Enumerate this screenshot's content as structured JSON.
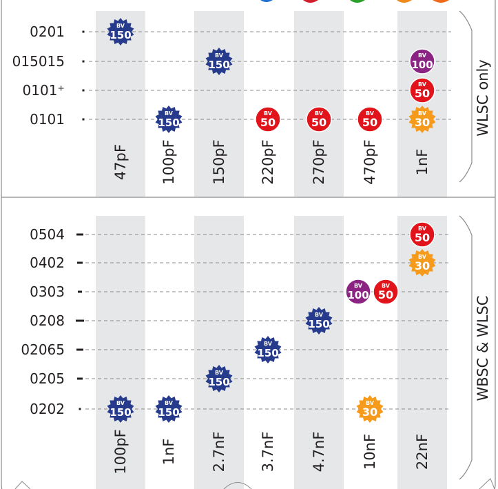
{
  "chart_data": [
    {
      "type": "scatter",
      "panel_label": "WLSC only",
      "columns": [
        "47pF",
        "100pF",
        "150pF",
        "220pF",
        "270pF",
        "470pF",
        "1nF"
      ],
      "rows": [
        "0201",
        "015015",
        "0101⁺",
        "0101"
      ],
      "points": [
        {
          "column": "47pF",
          "row": "0201",
          "bv": "150"
        },
        {
          "column": "150pF",
          "row": "015015",
          "bv": "150"
        },
        {
          "column": "1nF",
          "row": "015015",
          "bv": "100"
        },
        {
          "column": "1nF",
          "row": "0101⁺",
          "bv": "50"
        },
        {
          "column": "100pF",
          "row": "0101",
          "bv": "150"
        },
        {
          "column": "220pF",
          "row": "0101",
          "bv": "50"
        },
        {
          "column": "270pF",
          "row": "0101",
          "bv": "50"
        },
        {
          "column": "470pF",
          "row": "0101",
          "bv": "50"
        },
        {
          "column": "1nF",
          "row": "0101",
          "bv": "30"
        }
      ]
    },
    {
      "type": "scatter",
      "panel_label": "WBSC & WLSC",
      "columns": [
        "100pF",
        "1nF",
        "2.7nF",
        "3.7nF",
        "4.7nF",
        "10nF",
        "22nF"
      ],
      "rows": [
        "0504",
        "0402",
        "0303",
        "0208",
        "02065",
        "0205",
        "0202"
      ],
      "points": [
        {
          "column": "22nF",
          "row": "0504",
          "bv": "50"
        },
        {
          "column": "22nF",
          "row": "0402",
          "bv": "30"
        },
        {
          "column": "10nF",
          "row": "0303",
          "bv": "100"
        },
        {
          "column": "10nF",
          "row": "0303",
          "bv": "50"
        },
        {
          "column": "4.7nF",
          "row": "0208",
          "bv": "150"
        },
        {
          "column": "3.7nF",
          "row": "02065",
          "bv": "150"
        },
        {
          "column": "2.7nF",
          "row": "0205",
          "bv": "150"
        },
        {
          "column": "100pF",
          "row": "0202",
          "bv": "150"
        },
        {
          "column": "1nF",
          "row": "0202",
          "bv": "150"
        },
        {
          "column": "10nF",
          "row": "0202",
          "bv": "30"
        }
      ]
    }
  ],
  "badge_prefix": "BV",
  "colors": {
    "150": "#263b8c",
    "100": "#8b2382",
    "50": "#e2141b",
    "30": "#f59a1a",
    "column_band": "#e6e7e8",
    "gridline": "#8a8a8a",
    "text": "#231f20"
  }
}
